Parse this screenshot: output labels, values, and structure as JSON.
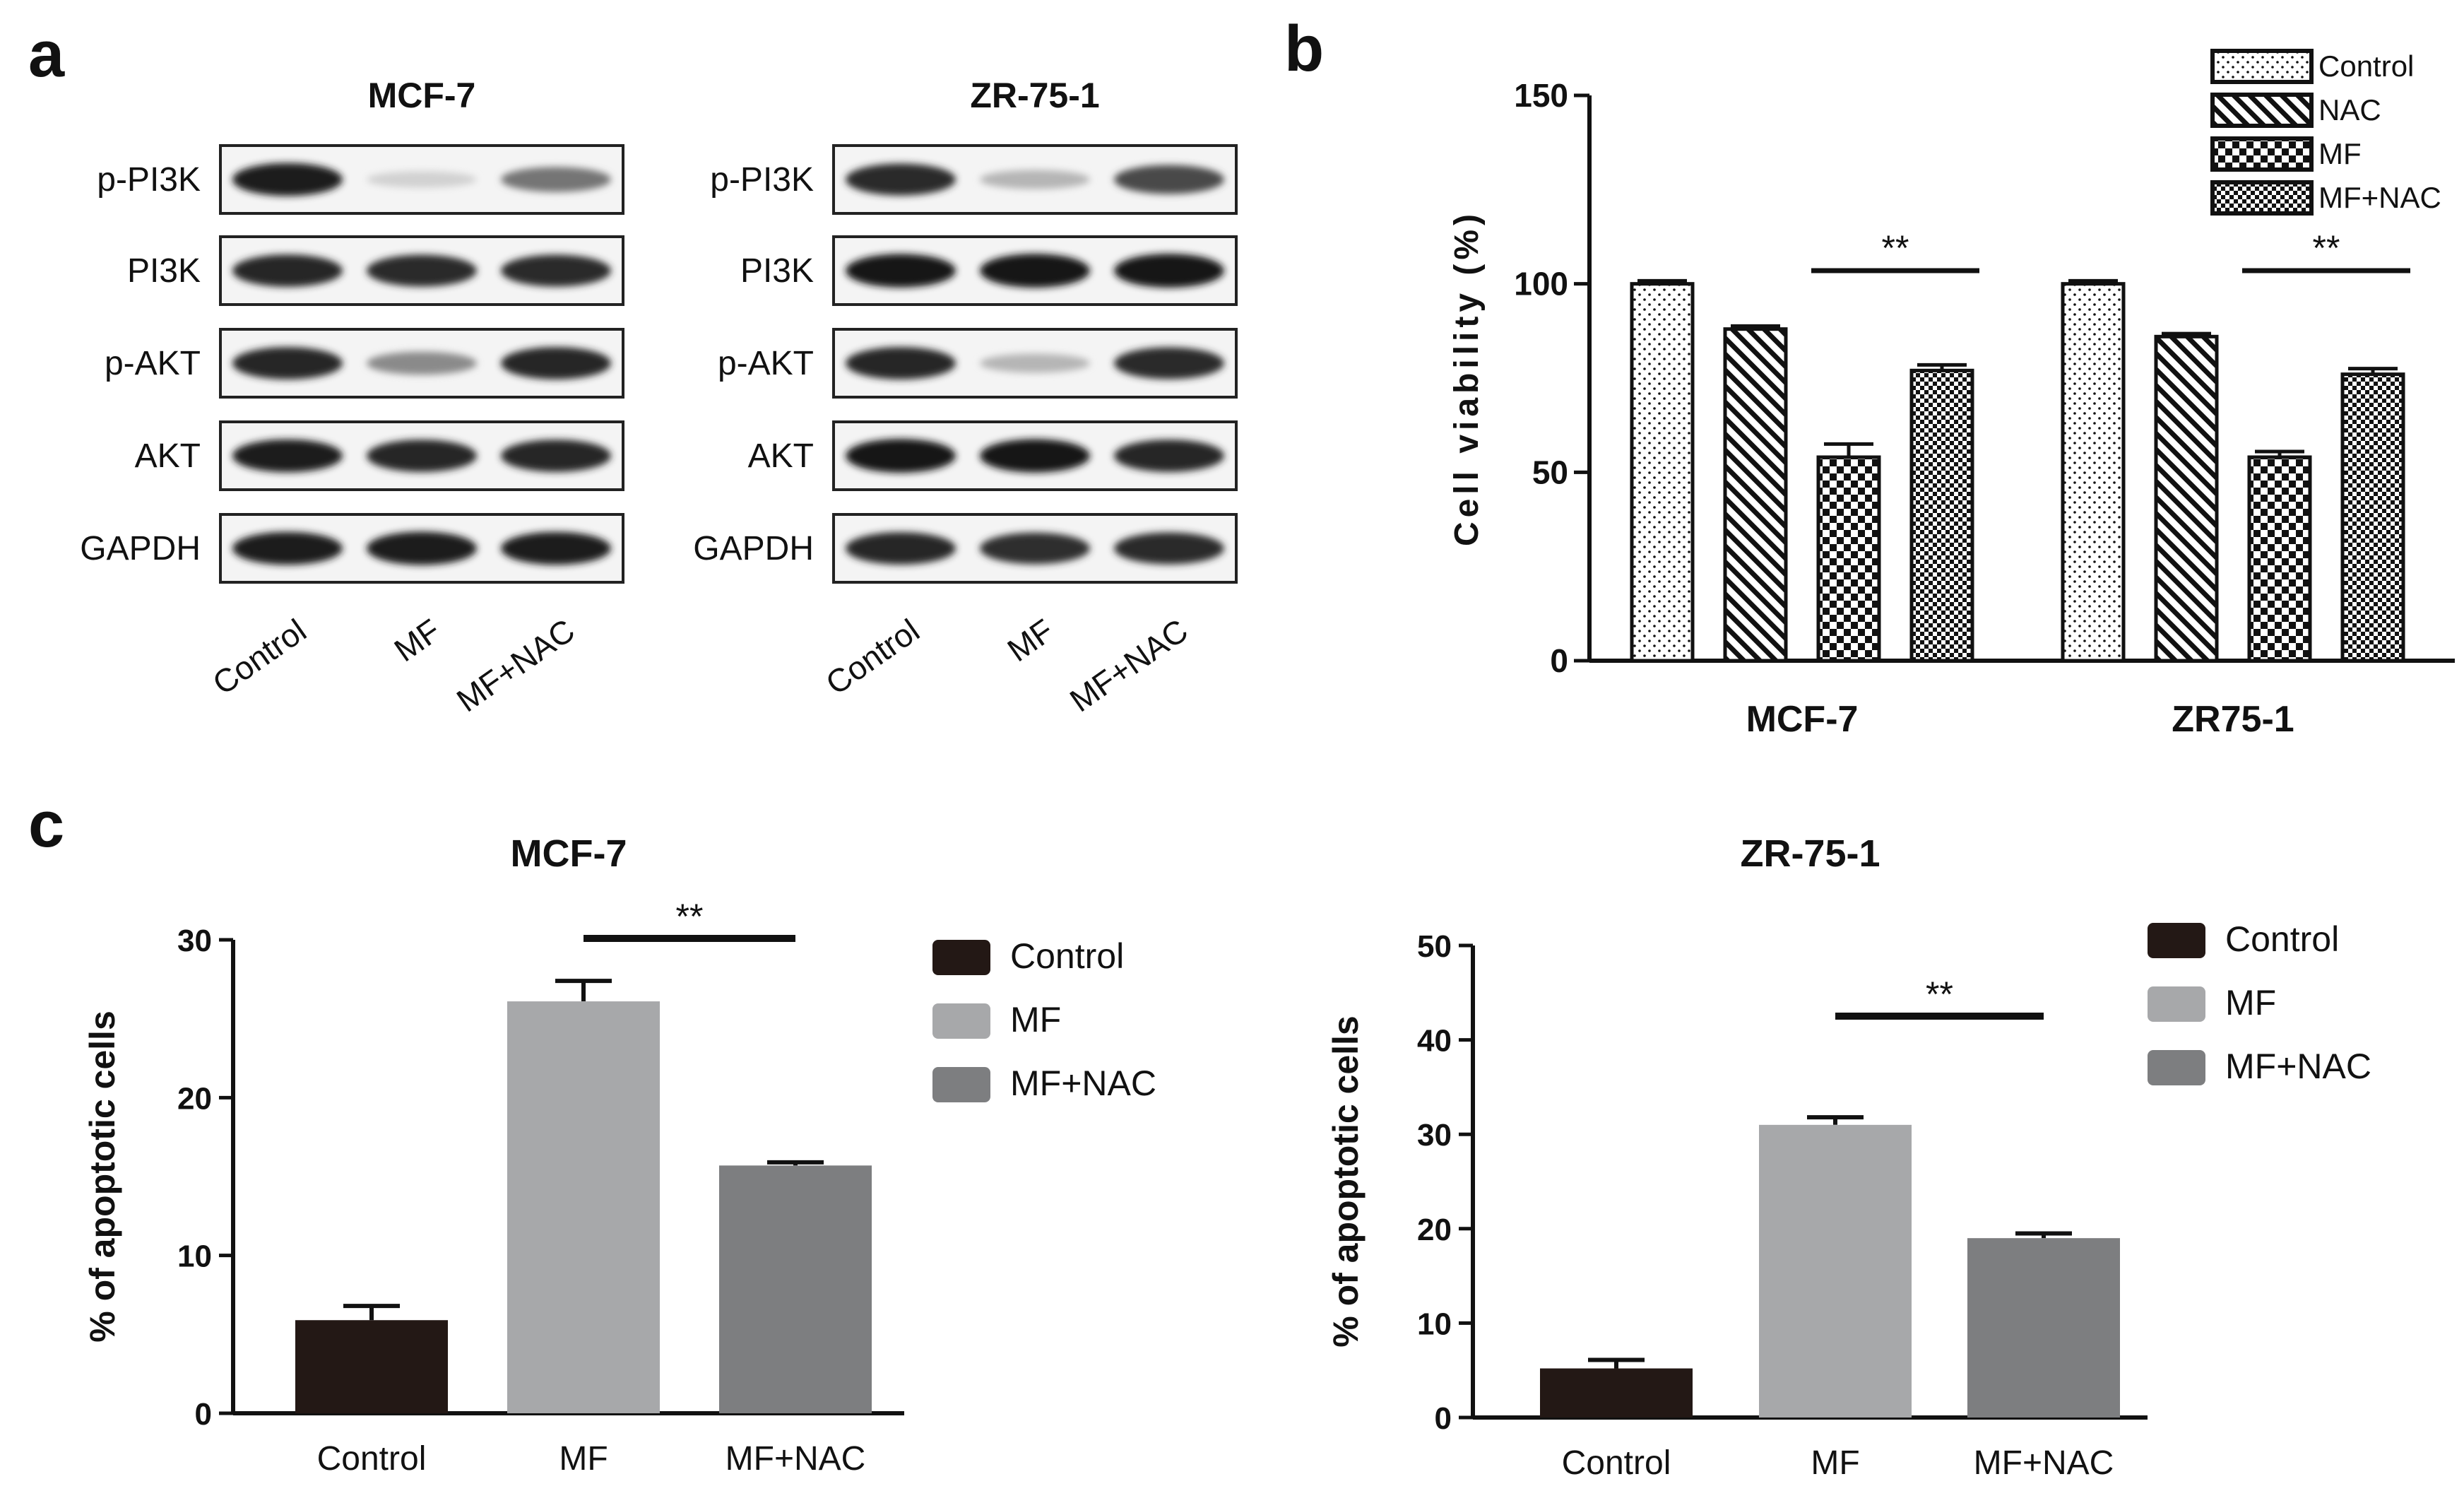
{
  "panel_labels": {
    "a": "a",
    "b": "b",
    "c": "c"
  },
  "blots": [
    {
      "title": "MCF-7",
      "rows": [
        "p-PI3K",
        "PI3K",
        "p-AKT",
        "AKT",
        "GAPDH"
      ],
      "lanes": [
        "Control",
        "MF",
        "MF+NAC"
      ],
      "band_intensity": [
        [
          0.95,
          0.12,
          0.55
        ],
        [
          0.92,
          0.9,
          0.9
        ],
        [
          0.92,
          0.45,
          0.92
        ],
        [
          0.95,
          0.92,
          0.92
        ],
        [
          0.95,
          0.97,
          0.95
        ]
      ]
    },
    {
      "title": "ZR-75-1",
      "rows": [
        "p-PI3K",
        "PI3K",
        "p-AKT",
        "AKT",
        "GAPDH"
      ],
      "lanes": [
        "Control",
        "MF",
        "MF+NAC"
      ],
      "band_intensity": [
        [
          0.9,
          0.25,
          0.75
        ],
        [
          0.98,
          1.0,
          1.0
        ],
        [
          0.92,
          0.25,
          0.9
        ],
        [
          1.0,
          0.98,
          0.92
        ],
        [
          0.92,
          0.88,
          0.9
        ]
      ]
    }
  ],
  "chart_data": [
    {
      "type": "bar",
      "panel": "b",
      "ylabel": "Cell viability (%)",
      "ylim": [
        0,
        150
      ],
      "yticks": [
        0,
        50,
        100,
        150
      ],
      "categories": [
        "MCF-7",
        "ZR75-1"
      ],
      "legend_position": "top-right",
      "series": [
        {
          "name": "Control",
          "pattern": "dots",
          "values": [
            100,
            100
          ],
          "errors": [
            0.8,
            0.8
          ]
        },
        {
          "name": "NAC",
          "pattern": "diagonal",
          "values": [
            88,
            86
          ],
          "errors": [
            0.8,
            0.8
          ]
        },
        {
          "name": "MF",
          "pattern": "checker",
          "values": [
            54,
            54
          ],
          "errors": [
            3.5,
            1.5
          ]
        },
        {
          "name": "MF+NAC",
          "pattern": "small-checker",
          "values": [
            77,
            76
          ],
          "errors": [
            1.5,
            1.5
          ]
        }
      ],
      "annotations": [
        "**",
        "**"
      ]
    },
    {
      "type": "bar",
      "panel": "c",
      "title": "MCF-7",
      "ylabel": "% of apoptotic cells",
      "ylim": [
        0,
        30
      ],
      "yticks": [
        0,
        10,
        20,
        30
      ],
      "categories": [
        "Control",
        "MF",
        "MF+NAC"
      ],
      "values": [
        5.9,
        26.1,
        15.7
      ],
      "errors": [
        0.9,
        1.3,
        0.2
      ],
      "colors": [
        "#231815",
        "#a7a8aa",
        "#7d7e80"
      ],
      "legend": [
        "Control",
        "MF",
        "MF+NAC"
      ],
      "legend_position": "top-right",
      "annotation": "**"
    },
    {
      "type": "bar",
      "panel": "c",
      "title": "ZR-75-1",
      "ylabel": "% of apoptotic cells",
      "ylim": [
        0,
        50
      ],
      "yticks": [
        0,
        10,
        20,
        30,
        40,
        50
      ],
      "categories": [
        "Control",
        "MF",
        "MF+NAC"
      ],
      "values": [
        5.2,
        31.0,
        19.0
      ],
      "errors": [
        0.9,
        0.8,
        0.5
      ],
      "colors": [
        "#231815",
        "#a7a8aa",
        "#7d7e80"
      ],
      "legend": [
        "Control",
        "MF",
        "MF+NAC"
      ],
      "legend_position": "top-right",
      "annotation": "**"
    }
  ]
}
